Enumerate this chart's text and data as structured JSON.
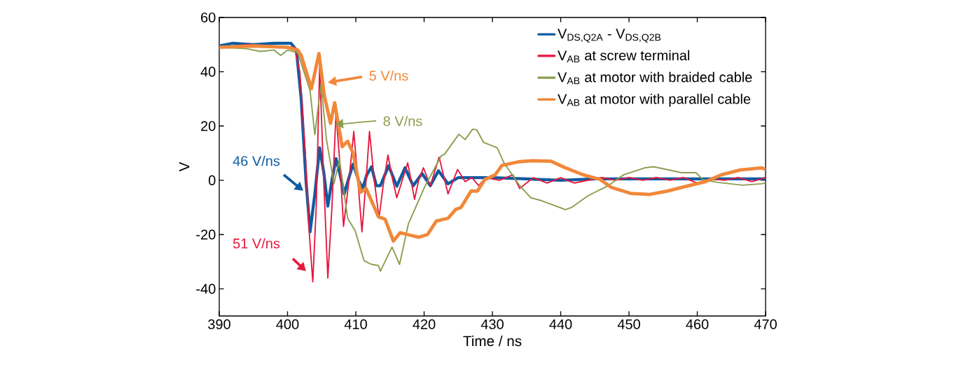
{
  "chart_data": {
    "type": "line",
    "xlabel": "Time / ns",
    "ylabel": "V",
    "xlim": [
      390,
      470
    ],
    "ylim": [
      -50,
      60
    ],
    "xticks": [
      390,
      400,
      410,
      420,
      430,
      440,
      450,
      460,
      470
    ],
    "yticks": [
      -40,
      -20,
      0,
      20,
      40,
      60
    ],
    "grid": false,
    "legend": "top right",
    "marker": "none",
    "line_style": "solid",
    "series": [
      {
        "name": "V$_{DS,Q2A}$ - V$_{DS,Q2B}$",
        "color": "#0f5ba1",
        "x": [
          390,
          392,
          395,
          398,
          400.5,
          401.3,
          402,
          402.7,
          403.3,
          404,
          404.7,
          405.3,
          405.9,
          406.5,
          407.1,
          407.7,
          408.3,
          409,
          409.6,
          410.4,
          411,
          411.6,
          412.3,
          413,
          413.6,
          414.8,
          416,
          417.2,
          418.4,
          419.7,
          420.9,
          422.1,
          423.5,
          425,
          427,
          430,
          435,
          440,
          445,
          450,
          455,
          460,
          465,
          470
        ],
        "values": [
          49.5,
          50.5,
          50,
          50.5,
          50.5,
          48,
          30,
          0,
          -19,
          -5,
          12,
          3,
          -9.5,
          0,
          8,
          2,
          -5,
          1,
          6,
          0,
          -3,
          2,
          5,
          -2,
          -2,
          5.4,
          -2.2,
          4.6,
          -2,
          2.5,
          -2,
          3.5,
          -1.3,
          1,
          1,
          1,
          0.5,
          0,
          0.5,
          0.5,
          0.5,
          0.5,
          0.5,
          0.5
        ]
      },
      {
        "name": "V$_{AB}$ at screw terminal",
        "color": "#e5183f",
        "x": [
          390,
          394,
          398,
          401,
          401.8,
          402.6,
          403.2,
          403.7,
          404.2,
          404.7,
          405.3,
          405.9,
          406.5,
          407.1,
          407.7,
          408.2,
          409,
          409.7,
          410.3,
          410.9,
          411.5,
          412,
          412.7,
          413.4,
          414,
          414.7,
          415.4,
          416,
          416.8,
          417.6,
          418.6,
          419.2,
          419.9,
          420.9,
          422.2,
          423.5,
          424.9,
          426,
          427,
          428,
          429,
          431,
          433,
          434,
          436,
          438,
          440,
          442,
          444,
          446,
          448,
          450,
          452,
          454,
          456,
          458,
          460,
          462,
          464,
          466,
          468,
          470
        ],
        "values": [
          49,
          50,
          49.5,
          49,
          40,
          10,
          -20,
          -37.4,
          -10,
          42,
          0,
          -36,
          -10,
          25,
          5,
          -17,
          0,
          18,
          0,
          -19,
          0,
          18,
          0,
          -14,
          -2,
          9.3,
          0,
          -6.4,
          0,
          6.4,
          -7,
          0,
          4.6,
          -2,
          8.5,
          -5,
          4,
          -0.5,
          1,
          -2,
          1,
          0,
          2,
          -3,
          1,
          -1,
          1,
          -1,
          0,
          1,
          0,
          1,
          0,
          1,
          0,
          1,
          -1,
          0.5,
          0,
          1,
          -0.5,
          1
        ]
      },
      {
        "name": "V$_{AB}$ at motor with braided cable",
        "color": "#8a9e4e",
        "x": [
          390,
          394,
          396,
          398,
          399,
          400,
          401.5,
          402.5,
          403.3,
          404,
          404.9,
          405.7,
          406.8,
          407.6,
          408.8,
          409.9,
          411.2,
          412.3,
          413.3,
          413.6,
          415.3,
          416.4,
          417.7,
          420.1,
          422.5,
          423,
          425.1,
          426,
          427.1,
          427.7,
          428.7,
          430.7,
          431.7,
          434,
          435.6,
          437.2,
          440.7,
          441.6,
          444,
          446.8,
          449.2,
          452.3,
          453.6,
          457.7,
          459.8,
          460.8,
          462.8,
          466.6,
          469.4,
          470
        ],
        "values": [
          49,
          48.5,
          47.5,
          48,
          46,
          48,
          47,
          null,
          33,
          16.8,
          35.6,
          15,
          -1.3,
          7.7,
          -14,
          -18.6,
          -29.6,
          -31,
          -31.4,
          -33.5,
          -24.6,
          -31,
          -16,
          -2.3,
          9,
          9.6,
          17,
          15,
          18.8,
          18.6,
          14,
          12,
          6.4,
          -2,
          -6.4,
          -7.5,
          -10.8,
          -10,
          -5.7,
          -2.2,
          2,
          4.6,
          5,
          2.8,
          2.8,
          0.3,
          -0.7,
          -1.8,
          -1.3,
          -1
        ]
      },
      {
        "name": "V$_{AB}$ at motor with parallel cable",
        "color": "#f0883a",
        "x": [
          390,
          395,
          400,
          401.5,
          402,
          403.5,
          404.6,
          405.4,
          406.3,
          406.9,
          408,
          408.8,
          409.6,
          410.7,
          411.5,
          413.3,
          414.3,
          415.5,
          416.5,
          417.6,
          419.2,
          420.5,
          421.8,
          423.5,
          424.6,
          425.4,
          426.9,
          427.8,
          428.9,
          430.4,
          431.4,
          433.8,
          435.8,
          438.6,
          440.7,
          443.3,
          445.8,
          447.4,
          450.2,
          453,
          455.6,
          458.4,
          461.2,
          463.5,
          466.3,
          469.4,
          470
        ],
        "values": [
          49,
          49.5,
          49,
          48,
          46,
          33.8,
          46.7,
          31,
          21,
          28.6,
          12.4,
          14.4,
          10,
          -4.4,
          -3,
          -13.4,
          -14.4,
          -22.4,
          -19.3,
          -20,
          -21,
          -20,
          -15,
          -14,
          -10.8,
          -10,
          -3.9,
          -4,
          0.3,
          2,
          5.5,
          6.8,
          7.2,
          7,
          4.6,
          2,
          0.3,
          -2.6,
          -4.8,
          -5.2,
          -4,
          -2.2,
          -0.5,
          2,
          3.8,
          4.6,
          4
        ]
      }
    ],
    "annotations": [
      "5 V/ns",
      "8 V/ns",
      "46 V/ns",
      "51 V/ns"
    ]
  }
}
